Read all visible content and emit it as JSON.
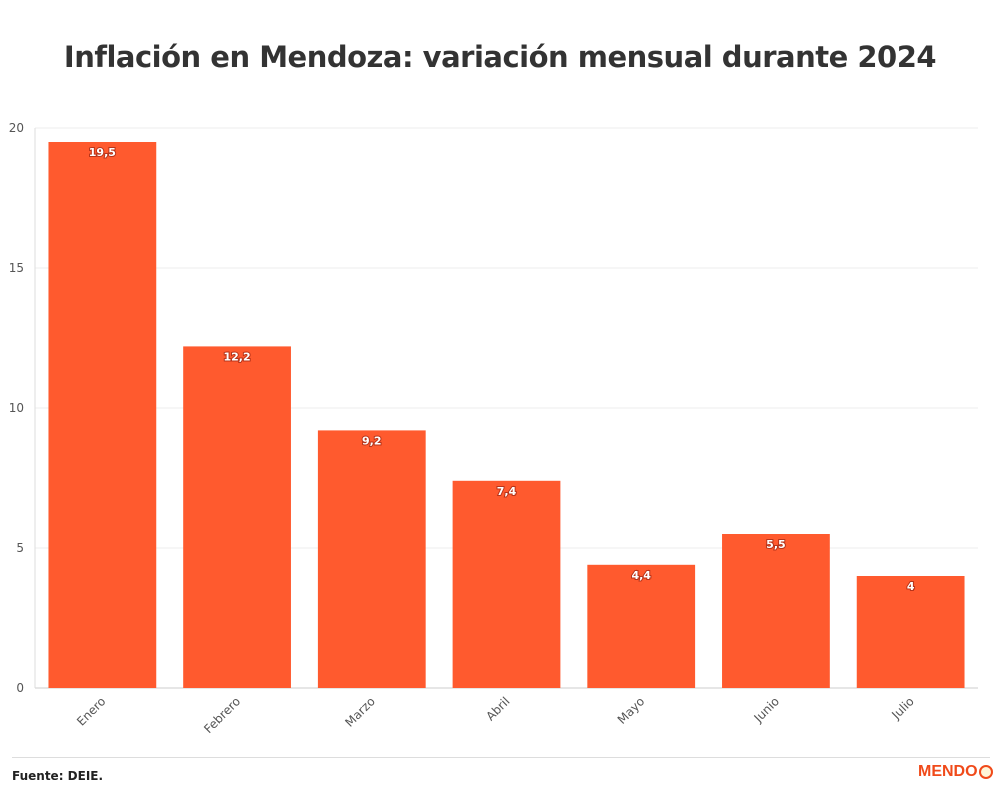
{
  "title": "Inflación en Mendoza: variación mensual durante 2024",
  "source": "Fuente: DEIE.",
  "logo_text": "MENDO",
  "chart_data": {
    "type": "bar",
    "categories": [
      "Enero",
      "Febrero",
      "Marzo",
      "Abril",
      "Mayo",
      "Junio",
      "Julio"
    ],
    "values": [
      19.5,
      12.2,
      9.2,
      7.4,
      4.4,
      5.5,
      4
    ],
    "data_labels": [
      "19,5",
      "12,2",
      "9,2",
      "7,4",
      "4,4",
      "5,5",
      "4"
    ],
    "ylim": [
      0,
      20
    ],
    "yticks": [
      0,
      5,
      10,
      15,
      20
    ],
    "grid": true,
    "color": "#ff5a2e",
    "xlabel": "",
    "ylabel": ""
  }
}
